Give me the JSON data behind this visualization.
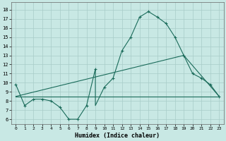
{
  "xlabel": "Humidex (Indice chaleur)",
  "bg_color": "#c8e8e4",
  "grid_color": "#a8ccc8",
  "line_color": "#1a6b5a",
  "xlim": [
    -0.5,
    23.5
  ],
  "ylim": [
    5.5,
    18.8
  ],
  "xticks": [
    0,
    1,
    2,
    3,
    4,
    5,
    6,
    7,
    8,
    9,
    10,
    11,
    12,
    13,
    14,
    15,
    16,
    17,
    18,
    19,
    20,
    21,
    22,
    23
  ],
  "yticks": [
    6,
    7,
    8,
    9,
    10,
    11,
    12,
    13,
    14,
    15,
    16,
    17,
    18
  ],
  "curve1_x": [
    0,
    1,
    2,
    3,
    4,
    5,
    6,
    7,
    8,
    9,
    9,
    10,
    11,
    12,
    13,
    14,
    15,
    16,
    17,
    18,
    19,
    20,
    21,
    22,
    23
  ],
  "curve1_y": [
    9.8,
    7.5,
    8.2,
    8.2,
    8.0,
    7.3,
    6.0,
    6.0,
    7.5,
    11.5,
    7.5,
    9.5,
    10.5,
    13.5,
    15.0,
    17.2,
    17.8,
    17.2,
    16.5,
    15.0,
    13.0,
    11.0,
    10.5,
    9.8,
    8.5
  ],
  "curve1_marker_x": [
    0,
    1,
    2,
    3,
    4,
    5,
    6,
    7,
    8,
    9,
    10,
    11,
    12,
    13,
    14,
    15,
    16,
    17,
    18,
    19,
    20,
    21,
    22,
    23
  ],
  "curve1_marker_y": [
    9.8,
    7.5,
    8.2,
    8.2,
    8.0,
    7.3,
    6.0,
    6.0,
    7.5,
    11.5,
    9.5,
    10.5,
    13.5,
    15.0,
    17.2,
    17.8,
    17.2,
    16.5,
    15.0,
    13.0,
    11.0,
    10.5,
    9.8,
    8.5
  ],
  "curve2_x": [
    0,
    23
  ],
  "curve2_y": [
    8.5,
    8.5
  ],
  "curve3_x": [
    0,
    19,
    23
  ],
  "curve3_y": [
    8.5,
    13.0,
    8.5
  ]
}
